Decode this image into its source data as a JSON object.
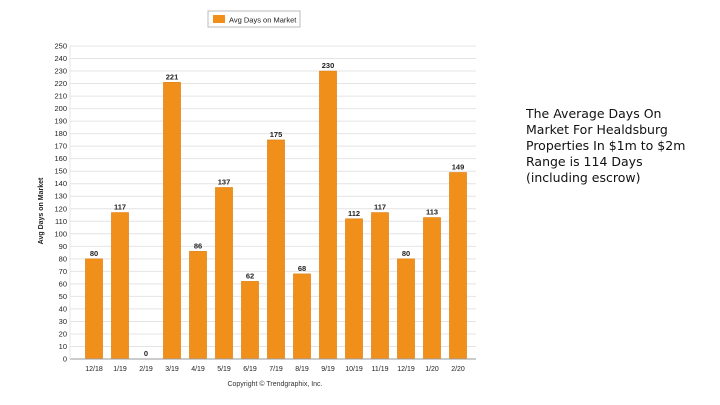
{
  "colors": {
    "bar": "#f0901a",
    "bar_edge": "#d97a0c",
    "grid": "#e4e4e4",
    "axis": "#9a9a9a",
    "text": "#222222"
  },
  "legend": {
    "label": "Avg Days on Market",
    "placement": "top-center"
  },
  "copyright": "Copyright © Trendgraphix, Inc.",
  "caption": "The Average Days On Market For Healdsburg Properties In $1m to $2m Range is 114 Days (including escrow)",
  "chart_data": {
    "type": "bar",
    "title": "",
    "xlabel": "",
    "ylabel": "Avg Days on Market",
    "ylim": [
      0,
      250
    ],
    "ytick_step": 10,
    "grid": true,
    "categories": [
      "12/18",
      "1/19",
      "2/19",
      "3/19",
      "4/19",
      "5/19",
      "6/19",
      "7/19",
      "8/19",
      "9/19",
      "10/19",
      "11/19",
      "12/19",
      "1/20",
      "2/20"
    ],
    "series": [
      {
        "name": "Avg Days on Market",
        "values": [
          80,
          117,
          0,
          221,
          86,
          137,
          62,
          175,
          68,
          230,
          112,
          117,
          80,
          113,
          149
        ]
      }
    ]
  }
}
